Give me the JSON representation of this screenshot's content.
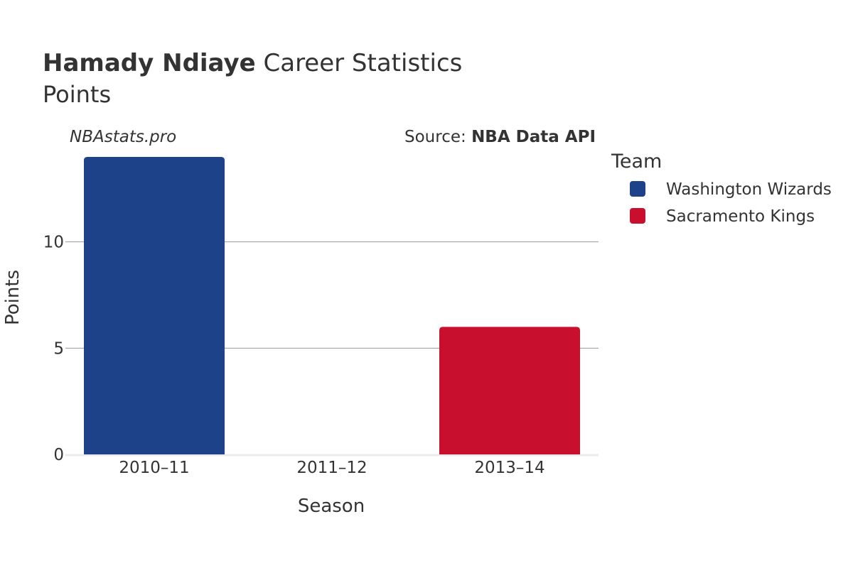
{
  "title": {
    "player": "Hamady Ndiaye",
    "rest": " Career Statistics",
    "subtitle": "Points"
  },
  "watermark": "NBAstats.pro",
  "source": {
    "prefix": "Source: ",
    "name": "NBA Data API"
  },
  "chart_data": {
    "type": "bar",
    "categories": [
      "2010–11",
      "2011–12",
      "2013–14"
    ],
    "series": [
      {
        "name": "Washington Wizards",
        "color": "#1d4289",
        "values": [
          14,
          0,
          0
        ]
      },
      {
        "name": "Sacramento Kings",
        "color": "#c8102e",
        "values": [
          0,
          0,
          6
        ]
      }
    ],
    "xlabel": "Season",
    "ylabel": "Points",
    "ylim": [
      0,
      14.7
    ],
    "yticks": [
      0,
      5,
      10
    ],
    "grid": true,
    "legend_title": "Team",
    "legend_position": "right"
  }
}
